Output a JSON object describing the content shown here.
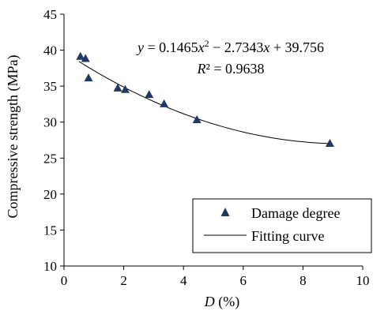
{
  "chart_data": {
    "type": "scatter",
    "xlabel": "D (%)",
    "xlabel_var": "D",
    "xlabel_unit": " (%)",
    "ylabel": "Compressive strength (MPa)",
    "xlim": [
      0,
      10
    ],
    "ylim": [
      10,
      45
    ],
    "xticks": [
      0,
      2,
      4,
      6,
      8,
      10
    ],
    "yticks": [
      10,
      15,
      20,
      25,
      30,
      35,
      40,
      45
    ],
    "grid": false,
    "legend_position": "bottom-right",
    "series": [
      {
        "name": "Damage degree",
        "marker": "triangle",
        "color": "#1f3864",
        "x": [
          0.55,
          0.72,
          0.82,
          1.8,
          2.05,
          2.85,
          3.35,
          4.45,
          8.9
        ],
        "y": [
          39.1,
          38.8,
          36.1,
          34.7,
          34.5,
          33.8,
          32.5,
          30.3,
          27.0
        ]
      },
      {
        "name": "Fitting curve",
        "type": "line",
        "color": "#000000",
        "x_range": [
          0.5,
          8.9
        ],
        "coefficients": {
          "a": 0.1465,
          "b": -2.7343,
          "c": 39.756
        }
      }
    ],
    "equation": {
      "line1_parts": [
        "y",
        " = 0.1465",
        "x",
        "2",
        " − 2.7343",
        "x",
        " + 39.756"
      ],
      "line2_parts": [
        "R",
        "² = 0.9638"
      ]
    }
  }
}
